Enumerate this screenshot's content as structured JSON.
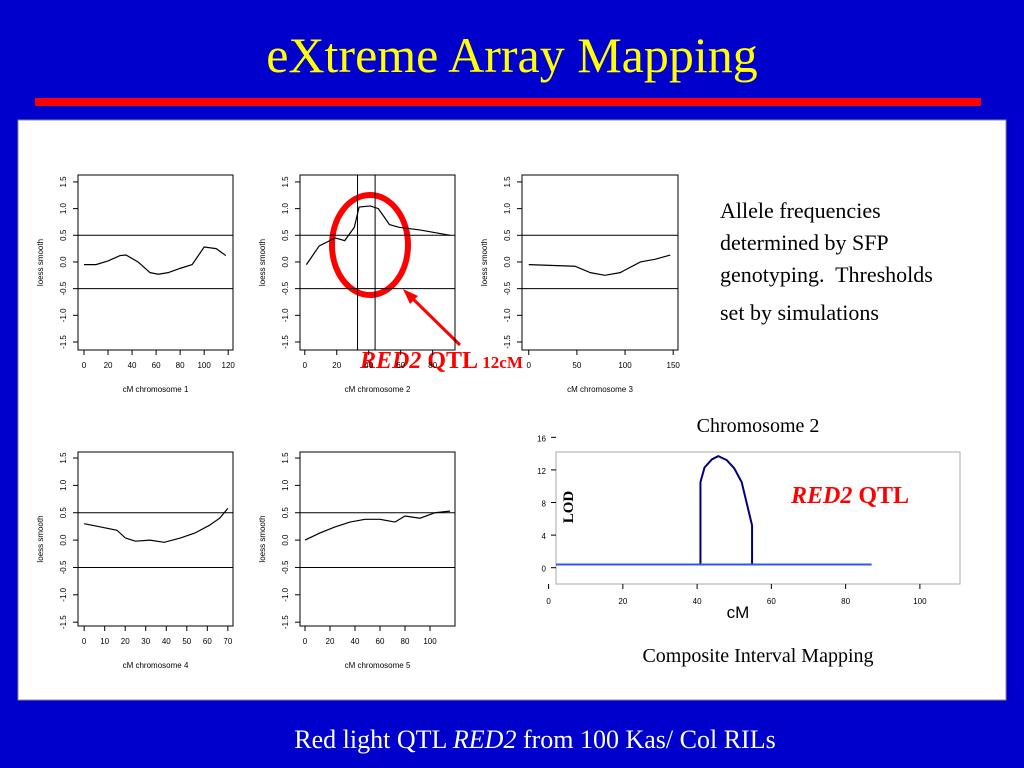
{
  "title": "eXtreme Array Mapping",
  "notes": [
    "Allele frequencies",
    "determined by SFP",
    "genotyping.  Thresholds",
    "set by simulations"
  ],
  "annotation": [
    "RED2",
    " QTL",
    " 12cM"
  ],
  "footer": [
    "Red light QTL ",
    "RED2",
    " from 100 Kas/ Col RILs"
  ],
  "chart_data": [
    {
      "type": "line",
      "xlabel": "cM chromosome 1",
      "ylabel": "loess smooth",
      "color": "#000000",
      "x": [
        0,
        10,
        20,
        30,
        35,
        45,
        55,
        62,
        70,
        80,
        90,
        100,
        110,
        118
      ],
      "values": [
        -0.05,
        -0.05,
        0.02,
        0.12,
        0.13,
        0.0,
        -0.2,
        -0.23,
        -0.2,
        -0.12,
        -0.05,
        0.28,
        0.25,
        0.12
      ],
      "xlim": [
        -5,
        124
      ],
      "ylim": [
        -1.65,
        1.63
      ],
      "xticks": [
        0,
        20,
        40,
        60,
        80,
        100,
        120
      ],
      "yticks": [
        -1.5,
        {
          "value": -1.0,
          "label": "-1.0"
        },
        -0.5,
        {
          "value": 0,
          "label": "0.0"
        },
        0.5,
        {
          "value": 1.0,
          "label": "1.0"
        },
        1.5
      ],
      "hlines": [
        0.5,
        -0.5
      ]
    },
    {
      "type": "line",
      "xlabel": "cM chromosome 2",
      "ylabel": "loess smooth",
      "color": "#000000",
      "x": [
        1,
        9,
        19,
        25,
        31,
        34,
        41,
        46,
        53,
        59,
        72,
        91
      ],
      "values": [
        -0.05,
        0.3,
        0.45,
        0.4,
        0.65,
        1.03,
        1.05,
        1.0,
        0.7,
        0.65,
        0.6,
        0.5
      ],
      "xlim": [
        -3,
        94
      ],
      "ylim": [
        -1.65,
        1.63
      ],
      "xticks": [
        0,
        20,
        40,
        60,
        80
      ],
      "yticks": [
        -1.5,
        {
          "value": -1.0,
          "label": "-1.0"
        },
        -0.5,
        {
          "value": 0,
          "label": "0.0"
        },
        0.5,
        {
          "value": 1.0,
          "label": "1.0"
        },
        1.5
      ],
      "hlines": [
        0.5,
        -0.5
      ],
      "vlines": [
        33,
        44
      ]
    },
    {
      "type": "line",
      "xlabel": "cM chromosome 3",
      "ylabel": "loess smooth",
      "color": "#000000",
      "x": [
        0,
        48,
        64,
        79,
        95,
        100,
        116,
        131,
        147
      ],
      "values": [
        -0.05,
        -0.08,
        -0.2,
        -0.25,
        -0.2,
        -0.15,
        0.0,
        0.05,
        0.13
      ],
      "xlim": [
        -7,
        155
      ],
      "ylim": [
        -1.65,
        1.63
      ],
      "xticks": [
        0,
        50,
        100,
        150
      ],
      "yticks": [
        -1.5,
        {
          "value": -1.0,
          "label": "-1.0"
        },
        -0.5,
        {
          "value": 0,
          "label": "0.0"
        },
        0.5,
        {
          "value": 1.0,
          "label": "1.0"
        },
        1.5
      ],
      "hlines": [
        0.5,
        -0.5
      ]
    },
    {
      "type": "line",
      "xlabel": "cM chromosome 4",
      "ylabel": "loess smooth",
      "color": "#000000",
      "x": [
        0,
        8,
        16,
        20,
        25,
        32,
        39,
        47,
        54,
        61,
        66,
        70
      ],
      "values": [
        0.3,
        0.24,
        0.18,
        0.04,
        -0.02,
        0,
        -0.04,
        0.04,
        0.13,
        0.27,
        0.4,
        0.58
      ],
      "xlim": [
        -3,
        72.5
      ],
      "ylim": [
        -1.57,
        1.61
      ],
      "xticks": [
        0,
        10,
        20,
        30,
        40,
        50,
        60,
        70
      ],
      "yticks": [
        -1.5,
        {
          "value": -1.0,
          "label": "-1.0"
        },
        -0.5,
        {
          "value": 0,
          "label": "0.0"
        },
        0.5,
        {
          "value": 1.0,
          "label": "1.0"
        },
        1.5
      ],
      "hlines": [
        0.5,
        -0.5
      ]
    },
    {
      "type": "line",
      "xlabel": "cM chromosome 5",
      "ylabel": "loess smooth",
      "color": "#000000",
      "x": [
        0,
        12,
        24,
        36,
        48,
        60,
        72,
        80,
        92,
        104,
        116
      ],
      "values": [
        0,
        0.13,
        0.24,
        0.33,
        0.38,
        0.38,
        0.33,
        0.44,
        0.4,
        0.5,
        0.53
      ],
      "xlim": [
        -4,
        120
      ],
      "ylim": [
        -1.57,
        1.61
      ],
      "xticks": [
        0,
        20,
        40,
        60,
        80,
        100
      ],
      "yticks": [
        -1.5,
        {
          "value": -1.0,
          "label": "-1.0"
        },
        -0.5,
        {
          "value": 0,
          "label": "0.0"
        },
        0.5,
        {
          "value": 1.0,
          "label": "1.0"
        },
        1.5
      ],
      "hlines": [
        0.5,
        -0.5
      ]
    },
    {
      "type": "line",
      "title": "Chromosome 2",
      "xlabel": "cM",
      "ylabel": "LOD",
      "annotation": [
        "RED2",
        " QTL"
      ],
      "caption": "Composite Interval Mapping",
      "series": [
        {
          "color": "#00007f",
          "x": [
            40.9,
            40.9,
            42,
            44,
            45.7,
            48,
            50,
            52,
            54.8,
            54.8
          ],
          "values": [
            0.4,
            10.5,
            12.3,
            13.3,
            13.7,
            13.2,
            12.2,
            10.5,
            5.2,
            0.4
          ]
        },
        {
          "color": "#3355ee",
          "x": [
            2,
            87
          ],
          "values": [
            0.4,
            0.4
          ]
        }
      ],
      "xlim": [
        2,
        110.8
      ],
      "ylim": [
        -2,
        14.2
      ],
      "xticks": [
        0,
        20,
        40,
        60,
        80,
        100
      ],
      "yticks": [
        0,
        4,
        8,
        12,
        16
      ]
    }
  ]
}
